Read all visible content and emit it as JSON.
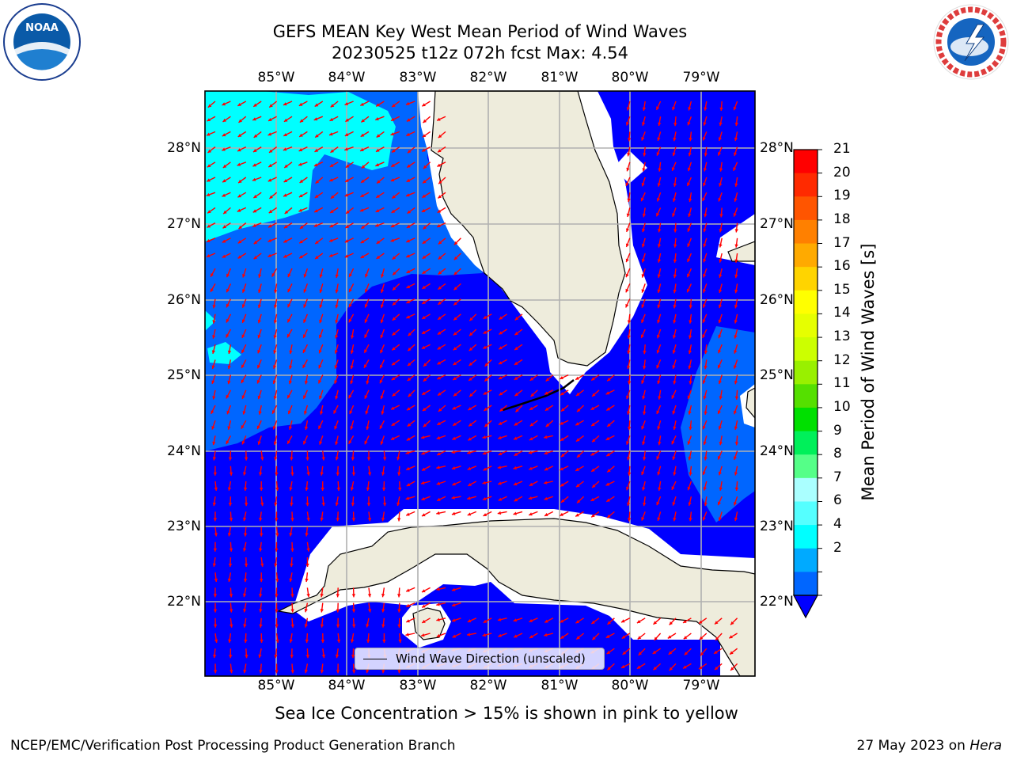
{
  "title": {
    "line1": "GEFS MEAN Key West Mean Period of Wind Waves",
    "line2": "20230525 t12z 072h fcst   Max: 4.54"
  },
  "map": {
    "lon_labels": [
      "85°W",
      "84°W",
      "83°W",
      "82°W",
      "81°W",
      "80°W",
      "79°W"
    ],
    "lat_labels": [
      "28°N",
      "27°N",
      "26°N",
      "25°N",
      "24°N",
      "23°N",
      "22°N"
    ],
    "land_color": "#eeecdc",
    "ocean_color": "#0000ff",
    "arrow_color": "#ff0000",
    "grid_color": "#b0b0b0"
  },
  "legend": {
    "label": "Wind Wave Direction (unscaled)"
  },
  "colorbar": {
    "label": "Mean Period of Wind Waves [s]",
    "ticks": [
      "21",
      "20",
      "19",
      "18",
      "17",
      "16",
      "15",
      "14",
      "13",
      "12",
      "11",
      "10",
      "9",
      "8",
      "7",
      "6",
      "4",
      "2"
    ],
    "colors": [
      "#ff0000",
      "#ff2a00",
      "#ff5500",
      "#ff8000",
      "#ffaa00",
      "#ffd400",
      "#ffff00",
      "#e6ff00",
      "#ccff00",
      "#99f000",
      "#55e000",
      "#00e000",
      "#00f05a",
      "#55ff88",
      "#aaffff",
      "#55ffff",
      "#00ffff",
      "#00aaff",
      "#0066ff"
    ],
    "extend_color": "#0000ff"
  },
  "note": "Sea Ice Concentration > 15% is shown in pink to yellow",
  "footer": {
    "left": "NCEP/EMC/Verification Post Processing Product Generation Branch",
    "right_date": "27 May 2023 on ",
    "right_host": "Hera"
  },
  "logos": {
    "noaa_text": "NOAA",
    "nws_text": "NATIONAL WEATHER SERVICE"
  }
}
